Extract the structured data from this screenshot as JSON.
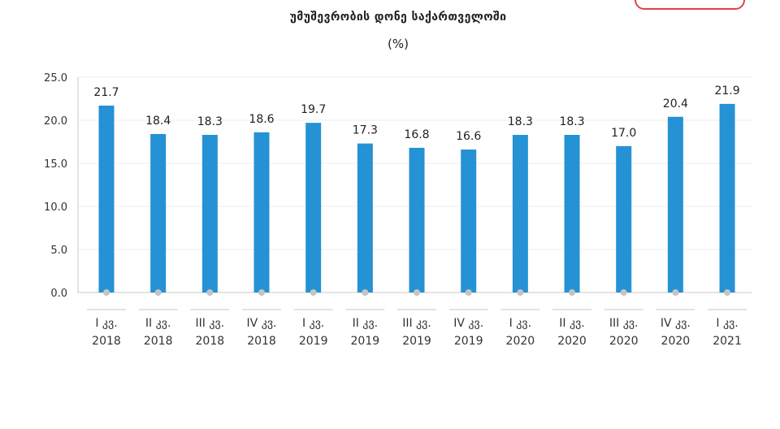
{
  "header": {
    "title": "უმუშევრობის დონე საქართველოში",
    "subtitle": "(%)"
  },
  "colors": {
    "bar": "#2492d4",
    "grid": "#ececec",
    "axis": "#c8c8c8",
    "marker": "#c4c4c4",
    "badge_border": "#e0404a"
  },
  "chart_data": {
    "type": "bar",
    "title": "უმუშევრობის დონე საქართველოში",
    "subtitle": "(%)",
    "categories": [
      [
        "I კვ.",
        "2018"
      ],
      [
        "II კვ.",
        "2018"
      ],
      [
        "III კვ.",
        "2018"
      ],
      [
        "IV კვ.",
        "2018"
      ],
      [
        "I კვ.",
        "2019"
      ],
      [
        "II კვ.",
        "2019"
      ],
      [
        "III კვ.",
        "2019"
      ],
      [
        "IV კვ.",
        "2019"
      ],
      [
        "I კვ.",
        "2020"
      ],
      [
        "II კვ.",
        "2020"
      ],
      [
        "III კვ.",
        "2020"
      ],
      [
        "IV კვ.",
        "2020"
      ],
      [
        "I კვ.",
        "2021"
      ]
    ],
    "values": [
      21.7,
      18.4,
      18.3,
      18.6,
      19.7,
      17.3,
      16.8,
      16.6,
      18.3,
      18.3,
      17.0,
      20.4,
      21.9
    ],
    "value_labels": [
      "21.7",
      "18.4",
      "18.3",
      "18.6",
      "19.7",
      "17.3",
      "16.8",
      "16.6",
      "18.3",
      "18.3",
      "17.0",
      "20.4",
      "21.9"
    ],
    "yticks": [
      "0.0",
      "5.0",
      "10.0",
      "15.0",
      "20.0",
      "25.0"
    ],
    "ytick_values": [
      0,
      5,
      10,
      15,
      20,
      25
    ],
    "ylim": [
      0,
      25
    ],
    "grid": true,
    "legend": "none",
    "xlabel": "",
    "ylabel": ""
  }
}
